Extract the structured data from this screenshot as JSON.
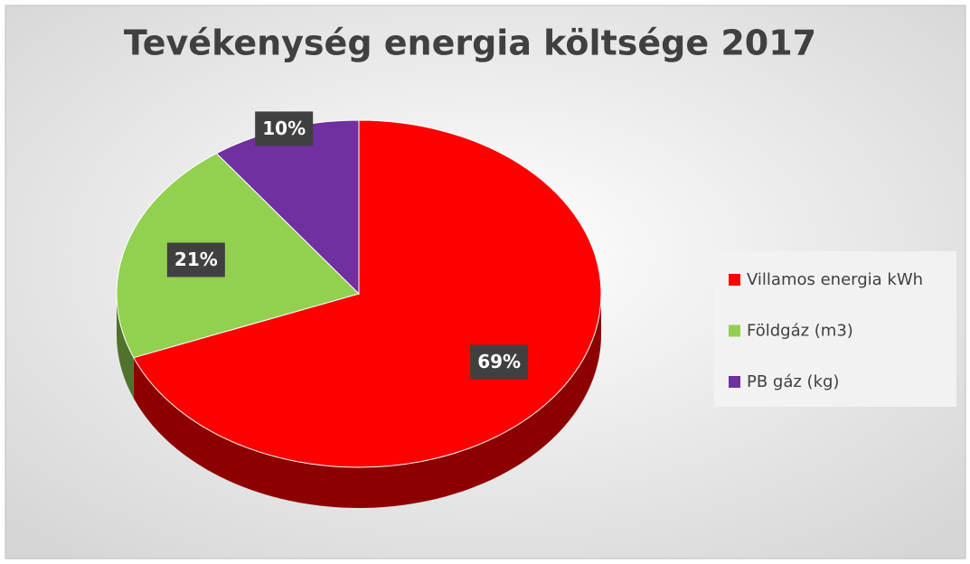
{
  "chart_data": {
    "type": "pie",
    "title": "Tevékenység energia költsége 2017",
    "categories": [
      "Villamos energia kWh",
      "Földgáz (m3)",
      "PB gáz (kg)"
    ],
    "values": [
      69,
      21,
      10
    ],
    "value_labels": [
      "69%",
      "21%",
      "10%"
    ],
    "colors": [
      "#ff0000",
      "#92d050",
      "#7030a0"
    ],
    "legend": "right"
  }
}
